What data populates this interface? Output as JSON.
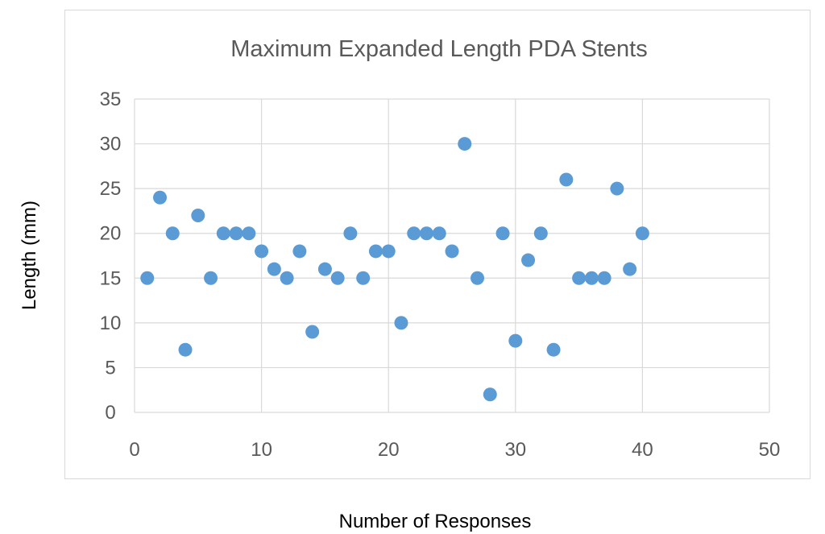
{
  "chart_data": {
    "type": "scatter",
    "title": "Maximum Expanded Length PDA Stents",
    "xlabel": "Number of Responses",
    "ylabel": "Length (mm)",
    "xlim": [
      0,
      50
    ],
    "ylim": [
      0,
      35
    ],
    "xticks": [
      "0",
      "10",
      "20",
      "30",
      "40",
      "50"
    ],
    "yticks": [
      "0",
      "5",
      "10",
      "15",
      "20",
      "25",
      "30",
      "35"
    ],
    "grid": true,
    "legend": "none",
    "marker_color": "#5b9bd5",
    "series": [
      {
        "x": [
          1,
          2,
          3,
          4,
          5,
          6,
          7,
          8,
          9,
          10,
          11,
          12,
          13,
          14,
          15,
          16,
          17,
          18,
          19,
          20,
          21,
          22,
          23,
          24,
          25,
          26,
          27,
          28,
          29,
          30,
          31,
          32,
          33,
          34,
          35,
          36,
          37,
          38,
          39,
          40
        ],
        "y": [
          15,
          24,
          20,
          7,
          22,
          15,
          20,
          20,
          20,
          18,
          16,
          15,
          18,
          9,
          16,
          15,
          20,
          15,
          18,
          18,
          10,
          20,
          20,
          20,
          18,
          30,
          15,
          2,
          20,
          8,
          17,
          20,
          7,
          26,
          15,
          15,
          15,
          25,
          16,
          20
        ]
      }
    ]
  }
}
